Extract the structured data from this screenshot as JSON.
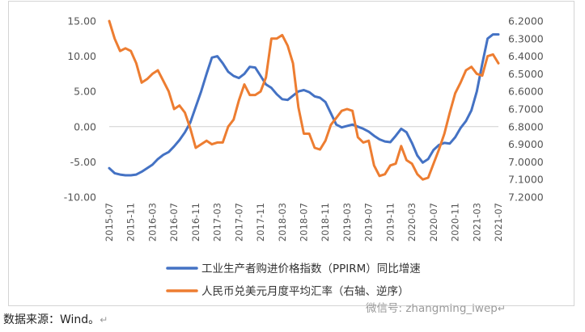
{
  "source_note": "数据来源：Wind。",
  "return_mark": "↵",
  "watermark": "微信号: zhangming_iwep",
  "chart_data": {
    "type": "line",
    "title": "",
    "x_tick_labels": [
      "2015-07",
      "2015-11",
      "2016-03",
      "2016-07",
      "2016-11",
      "2017-03",
      "2017-07",
      "2017-11",
      "2018-03",
      "2018-07",
      "2018-11",
      "2019-03",
      "2019-07",
      "2019-11",
      "2020-03",
      "2020-07",
      "2020-11",
      "2021-03",
      "2021-07"
    ],
    "x": [
      "2015-07",
      "2015-08",
      "2015-09",
      "2015-10",
      "2015-11",
      "2015-12",
      "2016-01",
      "2016-02",
      "2016-03",
      "2016-04",
      "2016-05",
      "2016-06",
      "2016-07",
      "2016-08",
      "2016-09",
      "2016-10",
      "2016-11",
      "2016-12",
      "2017-01",
      "2017-02",
      "2017-03",
      "2017-04",
      "2017-05",
      "2017-06",
      "2017-07",
      "2017-08",
      "2017-09",
      "2017-10",
      "2017-11",
      "2017-12",
      "2018-01",
      "2018-02",
      "2018-03",
      "2018-04",
      "2018-05",
      "2018-06",
      "2018-07",
      "2018-08",
      "2018-09",
      "2018-10",
      "2018-11",
      "2018-12",
      "2019-01",
      "2019-02",
      "2019-03",
      "2019-04",
      "2019-05",
      "2019-06",
      "2019-07",
      "2019-08",
      "2019-09",
      "2019-10",
      "2019-11",
      "2019-12",
      "2020-01",
      "2020-02",
      "2020-03",
      "2020-04",
      "2020-05",
      "2020-06",
      "2020-07",
      "2020-08",
      "2020-09",
      "2020-10",
      "2020-11",
      "2020-12",
      "2021-01",
      "2021-02",
      "2021-03",
      "2021-04",
      "2021-05",
      "2021-06",
      "2021-07"
    ],
    "left_axis": {
      "ylim": [
        -10,
        15
      ],
      "ticks": [
        "15.00",
        "10.00",
        "5.00",
        "0.00",
        "-5.00",
        "-10.00"
      ],
      "tick_values": [
        15,
        10,
        5,
        0,
        -5,
        -10
      ]
    },
    "right_axis": {
      "ylim": [
        7.2,
        6.2
      ],
      "inverted": true,
      "ticks": [
        "6.2000",
        "6.3000",
        "6.4000",
        "6.5000",
        "6.6000",
        "6.7000",
        "6.8000",
        "6.9000",
        "7.0000",
        "7.1000",
        "7.2000"
      ],
      "tick_values": [
        6.2,
        6.3,
        6.4,
        6.5,
        6.6,
        6.7,
        6.8,
        6.9,
        7.0,
        7.1,
        7.2
      ]
    },
    "series": [
      {
        "name": "工业生产者购进价格指数（PPIRM）同比增速",
        "axis": "left",
        "color": "#4472C4",
        "values": [
          -5.9,
          -6.6,
          -6.8,
          -6.9,
          -6.9,
          -6.8,
          -6.4,
          -5.9,
          -5.4,
          -4.6,
          -4.0,
          -3.6,
          -2.8,
          -1.9,
          -0.8,
          0.6,
          2.8,
          5.0,
          7.5,
          9.8,
          10.0,
          9.0,
          7.8,
          7.2,
          6.9,
          7.5,
          8.5,
          8.4,
          7.2,
          6.0,
          5.5,
          4.6,
          3.9,
          3.8,
          4.4,
          5.0,
          5.2,
          4.9,
          4.3,
          4.1,
          3.5,
          1.9,
          0.3,
          -0.1,
          0.1,
          0.3,
          0.0,
          -0.3,
          -0.7,
          -1.3,
          -1.8,
          -2.1,
          -2.2,
          -1.3,
          -0.3,
          -0.8,
          -2.3,
          -4.1,
          -5.1,
          -4.6,
          -3.3,
          -2.6,
          -2.3,
          -2.4,
          -1.5,
          -0.2,
          0.8,
          2.3,
          5.0,
          8.9,
          12.5,
          13.1,
          13.1
        ]
      },
      {
        "name": "人民币兑美元月度平均汇率（右轴、逆序）",
        "axis": "right",
        "color": "#ED7D31",
        "values": [
          6.2,
          6.3,
          6.37,
          6.355,
          6.37,
          6.44,
          6.55,
          6.53,
          6.5,
          6.48,
          6.54,
          6.6,
          6.7,
          6.68,
          6.72,
          6.81,
          6.92,
          6.9,
          6.88,
          6.9,
          6.89,
          6.89,
          6.8,
          6.76,
          6.65,
          6.56,
          6.62,
          6.62,
          6.6,
          6.52,
          6.3,
          6.3,
          6.28,
          6.34,
          6.44,
          6.69,
          6.84,
          6.84,
          6.92,
          6.93,
          6.88,
          6.79,
          6.75,
          6.71,
          6.7,
          6.71,
          6.86,
          6.89,
          6.88,
          7.02,
          7.08,
          7.07,
          7.02,
          7.01,
          6.91,
          6.99,
          7.01,
          7.07,
          7.1,
          7.09,
          7.01,
          6.93,
          6.84,
          6.72,
          6.61,
          6.55,
          6.48,
          6.46,
          6.5,
          6.51,
          6.4,
          6.39,
          6.44
        ]
      }
    ],
    "legend_position": "bottom"
  }
}
